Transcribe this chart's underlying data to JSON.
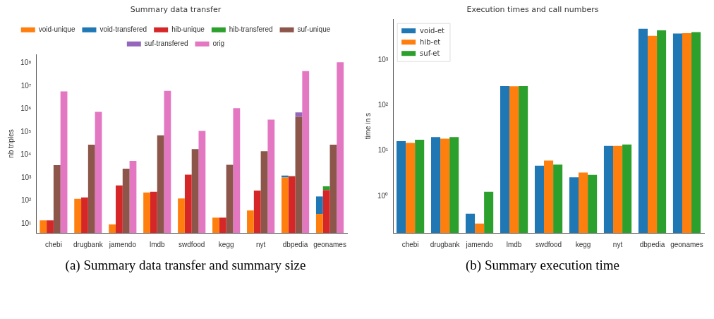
{
  "chart_data": [
    {
      "type": "bar",
      "title": "Summary data transfer",
      "ylabel": "nb triples",
      "log": "y",
      "legend": "top",
      "categories": [
        "chebi",
        "drugbank",
        "jamendo",
        "lmdb",
        "swdfood",
        "kegg",
        "nyt",
        "dbpedia",
        "geonames"
      ],
      "ylim": [
        4,
        240000000
      ],
      "yticks": [
        {
          "value": 10,
          "label": "10¹"
        },
        {
          "value": 100,
          "label": "10²"
        },
        {
          "value": 1000,
          "label": "10³"
        },
        {
          "value": 10000,
          "label": "10⁴"
        },
        {
          "value": 100000,
          "label": "10⁵"
        },
        {
          "value": 1000000,
          "label": "10⁶"
        },
        {
          "value": 10000000,
          "label": "10⁷"
        },
        {
          "value": 100000000,
          "label": "10⁸"
        }
      ],
      "series": [
        {
          "name": "void-unique",
          "color": "#ff7f0e",
          "values": [
            14,
            123,
            9.3,
            230,
            127,
            18.5,
            38,
            1050,
            27
          ]
        },
        {
          "name": "void-transfered",
          "color": "#1f77b4",
          "values": [
            null,
            null,
            null,
            null,
            null,
            null,
            null,
            210,
            128
          ],
          "base": [
            null,
            null,
            null,
            null,
            null,
            null,
            null,
            1050,
            27
          ]
        },
        {
          "name": "hib-unique",
          "color": "#d62728",
          "values": [
            14,
            140,
            470,
            250,
            1380,
            18.5,
            280,
            1150,
            295
          ]
        },
        {
          "name": "hib-transfered",
          "color": "#2ca02c",
          "values": [
            null,
            null,
            null,
            null,
            null,
            null,
            null,
            50,
            135
          ],
          "base": [
            null,
            null,
            null,
            null,
            null,
            null,
            null,
            1150,
            295
          ]
        },
        {
          "name": "suf-unique",
          "color": "#8c564b",
          "values": [
            3600,
            28000,
            2540,
            72000,
            18000,
            3700,
            14500,
            460000,
            28000
          ]
        },
        {
          "name": "suf-transfered",
          "color": "#9467bd",
          "values": [
            null,
            null,
            null,
            null,
            null,
            null,
            null,
            260000,
            null
          ],
          "base": [
            null,
            null,
            null,
            null,
            null,
            null,
            null,
            460000,
            null
          ]
        },
        {
          "name": "orig",
          "color": "#e377c2",
          "values": [
            5900000,
            760000,
            5500,
            6200000,
            112000,
            1100000,
            350000,
            45000000,
            110000000
          ]
        }
      ],
      "annotations": [
        "(a) Summary data transfer and summary size"
      ]
    },
    {
      "type": "bar",
      "title": "Execution times and call numbers",
      "ylabel": "time in s",
      "log": "y",
      "legend": "top left",
      "categories": [
        "chebi",
        "drugbank",
        "jamendo",
        "lmdb",
        "swdfood",
        "kegg",
        "nyt",
        "dbpedia",
        "geonames"
      ],
      "ylim": [
        0.155,
        7900
      ],
      "yticks": [
        {
          "value": 1,
          "label": "10⁰"
        },
        {
          "value": 10,
          "label": "10¹"
        },
        {
          "value": 100,
          "label": "10²"
        },
        {
          "value": 1000,
          "label": "10³"
        }
      ],
      "series": [
        {
          "name": "void-et",
          "color": "#1f77b4",
          "values": [
            16.3,
            20,
            0.41,
            265,
            4.7,
            2.6,
            12.8,
            4850,
            3820
          ]
        },
        {
          "name": "hib-et",
          "color": "#ff7f0e",
          "values": [
            14.9,
            18.5,
            0.25,
            262,
            6.1,
            3.3,
            12.8,
            3400,
            3900
          ]
        },
        {
          "name": "suf-et",
          "color": "#2ca02c",
          "values": [
            17.5,
            20,
            1.25,
            265,
            4.95,
            2.95,
            13.7,
            4470,
            4100
          ]
        }
      ],
      "annotations": [
        "(b) Summary execution time"
      ]
    }
  ]
}
